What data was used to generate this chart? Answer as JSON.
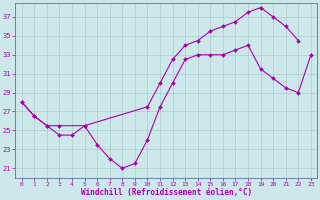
{
  "xlabel": "Windchill (Refroidissement éolien,°C)",
  "xlim": [
    -0.5,
    23.5
  ],
  "ylim": [
    20.0,
    38.5
  ],
  "xticks": [
    0,
    1,
    2,
    3,
    4,
    5,
    6,
    7,
    8,
    9,
    10,
    11,
    12,
    13,
    14,
    15,
    16,
    17,
    18,
    19,
    20,
    21,
    22,
    23
  ],
  "yticks": [
    21,
    23,
    25,
    27,
    29,
    31,
    33,
    35,
    37
  ],
  "line_color": "#aa00aa",
  "bg_color": "#cce8ea",
  "grid_color": "#aaccce",
  "line1_x": [
    0,
    1,
    2,
    3,
    5,
    10,
    11,
    12,
    13,
    14,
    15,
    16,
    17,
    18,
    19,
    20,
    21,
    22
  ],
  "line1_y": [
    28,
    26.5,
    25.5,
    25.5,
    25.5,
    27.5,
    30,
    32.5,
    34,
    34.5,
    35.5,
    36,
    36.5,
    37.5,
    38,
    37,
    36,
    34.5
  ],
  "line2_x": [
    0,
    1,
    2,
    3,
    4,
    5,
    6,
    7,
    8,
    9,
    10,
    11,
    12,
    13,
    14,
    15,
    16,
    17,
    18,
    19,
    20,
    21,
    22,
    23
  ],
  "line2_y": [
    28,
    26.5,
    25.5,
    24.5,
    24.5,
    25.5,
    23.5,
    22,
    21,
    21.5,
    24,
    27.5,
    30,
    32.5,
    33,
    33,
    33,
    33.5,
    34,
    31.5,
    30.5,
    29.5,
    29,
    33
  ]
}
